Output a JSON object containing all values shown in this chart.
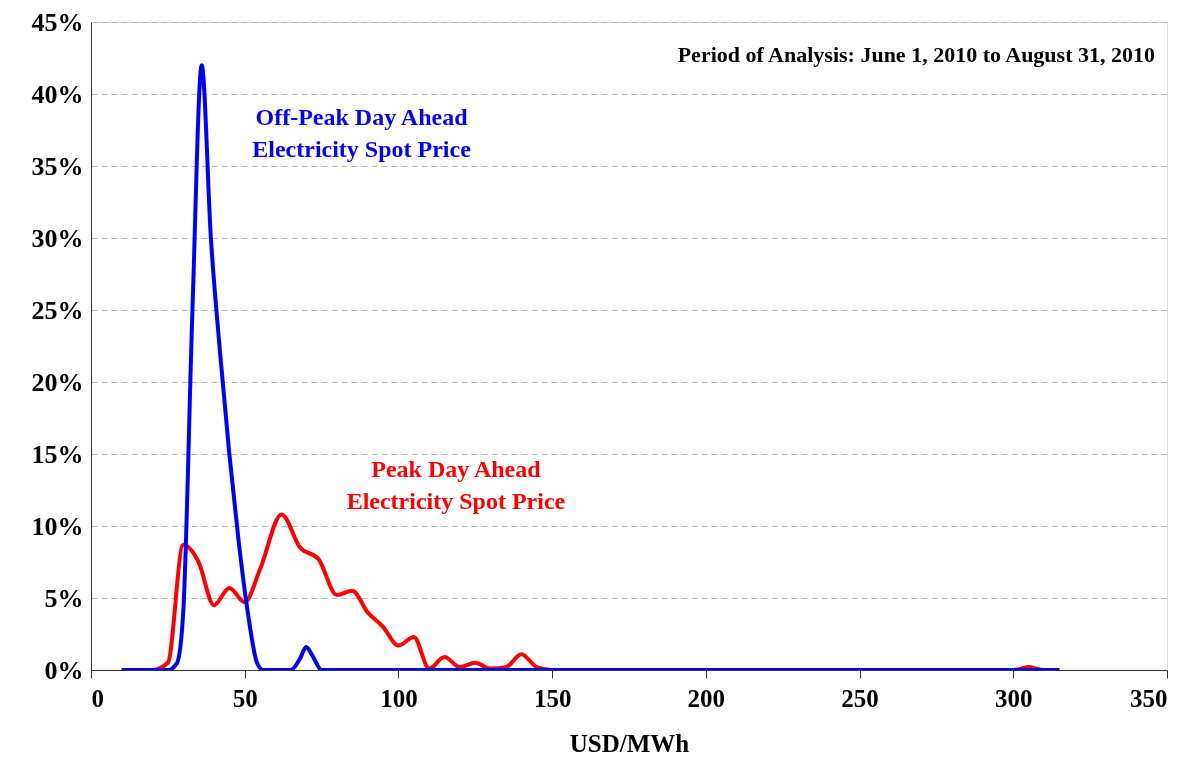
{
  "chart_data": {
    "type": "line",
    "xlabel": "USD/MWh",
    "annotations": [
      "Period of Analysis: June 1, 2010 to August 31, 2010"
    ],
    "xlim": [
      0,
      350
    ],
    "xticks": [
      0,
      50,
      100,
      150,
      200,
      250,
      300,
      350
    ],
    "ylim": [
      0,
      45
    ],
    "yticks": [
      {
        "value": 0,
        "label": "0%"
      },
      {
        "value": 5,
        "label": "5%"
      },
      {
        "value": 10,
        "label": "10%"
      },
      {
        "value": 15,
        "label": "15%"
      },
      {
        "value": 20,
        "label": "20%"
      },
      {
        "value": 25,
        "label": "25%"
      },
      {
        "value": 30,
        "label": "30%"
      },
      {
        "value": 35,
        "label": "35%"
      },
      {
        "value": 40,
        "label": "40%"
      },
      {
        "value": 45,
        "label": "45%"
      }
    ],
    "grid": "y",
    "marker": "none",
    "line_style": "solid",
    "series": [
      {
        "name": "Peak Day Ahead\nElectricity Spot Price",
        "color": "#ff0000",
        "x": [
          10,
          15,
          20,
          25,
          30,
          35,
          40,
          45,
          50,
          55,
          62,
          68,
          74,
          80,
          85,
          90,
          95,
          100,
          105,
          110,
          115,
          120,
          125,
          130,
          135,
          140,
          145,
          150,
          300,
          305,
          310,
          315
        ],
        "values": [
          0,
          0,
          0,
          0.5,
          8.7,
          7.5,
          4.5,
          5.7,
          4.7,
          7,
          10.8,
          8.5,
          7.7,
          5.2,
          5.5,
          4,
          3,
          1.7,
          2.3,
          0.1,
          0.9,
          0.2,
          0.5,
          0.1,
          0.2,
          1.1,
          0.2,
          0,
          0,
          0.2,
          0,
          0
        ]
      },
      {
        "name": "Off-Peak Day Ahead\nElectricity Spot Price",
        "color": "#0000ff",
        "x": [
          10,
          20,
          25,
          28,
          30,
          33,
          36,
          39,
          42,
          45,
          48,
          51,
          54,
          56,
          60,
          65,
          68,
          70,
          72,
          75,
          80,
          315
        ],
        "values": [
          0,
          0,
          0,
          0.5,
          4,
          25,
          42,
          30,
          22,
          15,
          9,
          4,
          0.5,
          0,
          0,
          0,
          0.8,
          1.6,
          1,
          0,
          0,
          0
        ]
      }
    ]
  }
}
